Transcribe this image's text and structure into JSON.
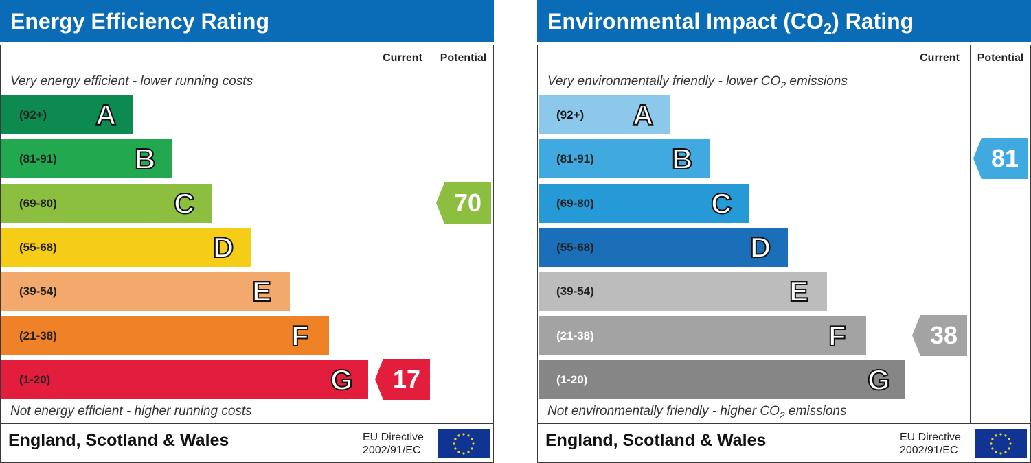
{
  "colors": {
    "header_bg": "#0a6cb6",
    "energy_bands": [
      "#0c8a4f",
      "#22a94f",
      "#8cbf3f",
      "#f5cd17",
      "#f2a96b",
      "#ef8226",
      "#e31d3c"
    ],
    "co2_bands": [
      "#8cc8ea",
      "#3fa9e0",
      "#259ad6",
      "#1b6fb9",
      "#bcbcbc",
      "#a3a3a3",
      "#868686"
    ]
  },
  "chart_data": [
    {
      "type": "bar",
      "title": "Energy Efficiency Rating",
      "columns": [
        "Current",
        "Potential"
      ],
      "top_caption": "Very energy efficient - lower running costs",
      "bottom_caption": "Not energy efficient - higher running costs",
      "bands": [
        {
          "letter": "A",
          "range": "(92+)"
        },
        {
          "letter": "B",
          "range": "(81-91)"
        },
        {
          "letter": "C",
          "range": "(69-80)"
        },
        {
          "letter": "D",
          "range": "(55-68)"
        },
        {
          "letter": "E",
          "range": "(39-54)"
        },
        {
          "letter": "F",
          "range": "(21-38)"
        },
        {
          "letter": "G",
          "range": "(1-20)"
        }
      ],
      "current": {
        "value": 17,
        "band": "G",
        "color": "#e31d3c"
      },
      "potential": {
        "value": 70,
        "band": "C",
        "color": "#8cbf3f"
      },
      "footer_country": "England, Scotland & Wales",
      "footer_directive": [
        "EU Directive",
        "2002/91/EC"
      ]
    },
    {
      "type": "bar",
      "title": "Environmental Impact (CO2) Rating",
      "columns": [
        "Current",
        "Potential"
      ],
      "top_caption": "Very environmentally friendly - lower CO2 emissions",
      "bottom_caption": "Not environmentally friendly - higher CO2 emissions",
      "bands": [
        {
          "letter": "A",
          "range": "(92+)"
        },
        {
          "letter": "B",
          "range": "(81-91)"
        },
        {
          "letter": "C",
          "range": "(69-80)"
        },
        {
          "letter": "D",
          "range": "(55-68)"
        },
        {
          "letter": "E",
          "range": "(39-54)"
        },
        {
          "letter": "F",
          "range": "(21-38)"
        },
        {
          "letter": "G",
          "range": "(1-20)"
        }
      ],
      "current": {
        "value": 38,
        "band": "F",
        "color": "#a3a3a3"
      },
      "potential": {
        "value": 81,
        "band": "B",
        "color": "#3fa9e0"
      },
      "footer_country": "England, Scotland & Wales",
      "footer_directive": [
        "EU Directive",
        "2002/91/EC"
      ]
    }
  ]
}
